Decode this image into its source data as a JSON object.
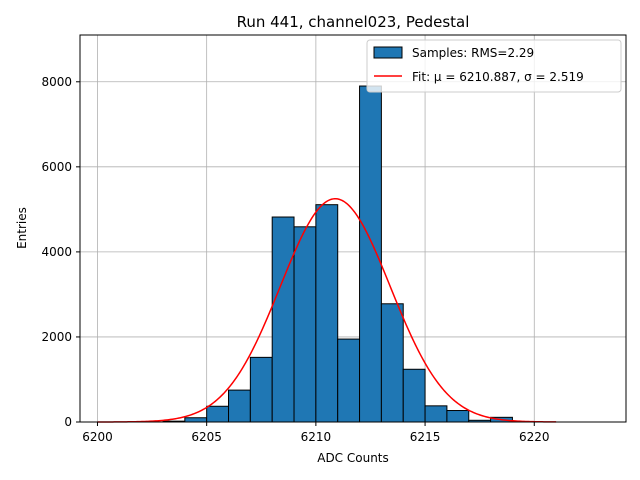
{
  "chart_data": {
    "type": "bar",
    "title": "Run 441, channel023, Pedestal",
    "xlabel": "ADC Counts",
    "ylabel": "Entries",
    "xlim": [
      6199.2,
      6224.2
    ],
    "ylim": [
      0,
      9100
    ],
    "grid": true,
    "legend_position": "top-right",
    "xticks": [
      6200,
      6205,
      6210,
      6215,
      6220
    ],
    "yticks": [
      0,
      2000,
      4000,
      6000,
      8000
    ],
    "histogram": {
      "name": "Samples: RMS=2.29",
      "bin_width": 1,
      "bins_left": [
        6203,
        6204,
        6205,
        6206,
        6207,
        6208,
        6209,
        6210,
        6211,
        6212,
        6213,
        6214,
        6215,
        6216,
        6217,
        6218
      ],
      "counts": [
        20,
        100,
        370,
        750,
        1520,
        4820,
        4590,
        5110,
        1950,
        7900,
        2780,
        1240,
        380,
        270,
        40,
        110
      ],
      "color": "#1f77b4"
    },
    "fit": {
      "name": "Fit: μ = 6210.887, σ = 2.519",
      "mu": 6210.887,
      "sigma": 2.519,
      "amplitude": 5250,
      "x_range": [
        6200,
        6221
      ],
      "color": "#ff0000"
    }
  }
}
